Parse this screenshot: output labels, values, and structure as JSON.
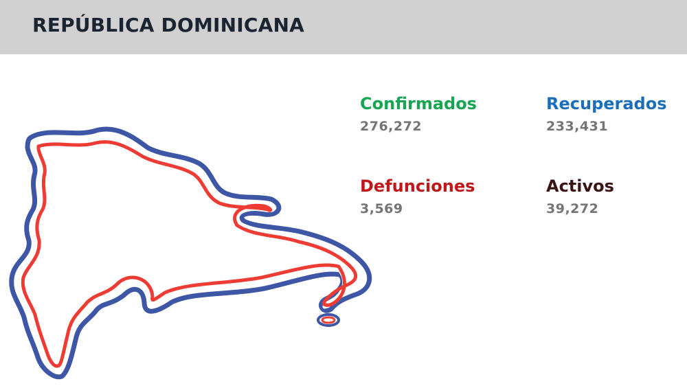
{
  "header": {
    "title": "REPÚBLICA DOMINICANA"
  },
  "map": {
    "icon": "dominican-republic-outline-map",
    "colors": {
      "blue": "#3e56a6",
      "red": "#ee3b33"
    }
  },
  "stats": {
    "confirmados": {
      "label": "Confirmados",
      "value": "276,272",
      "color": "#16a552"
    },
    "recuperados": {
      "label": "Recuperados",
      "value": "233,431",
      "color": "#1b6fba"
    },
    "defunciones": {
      "label": "Defunciones",
      "value": "3,569",
      "color": "#c01818"
    },
    "activos": {
      "label": "Activos",
      "value": "39,272",
      "color": "#3a1414"
    }
  }
}
